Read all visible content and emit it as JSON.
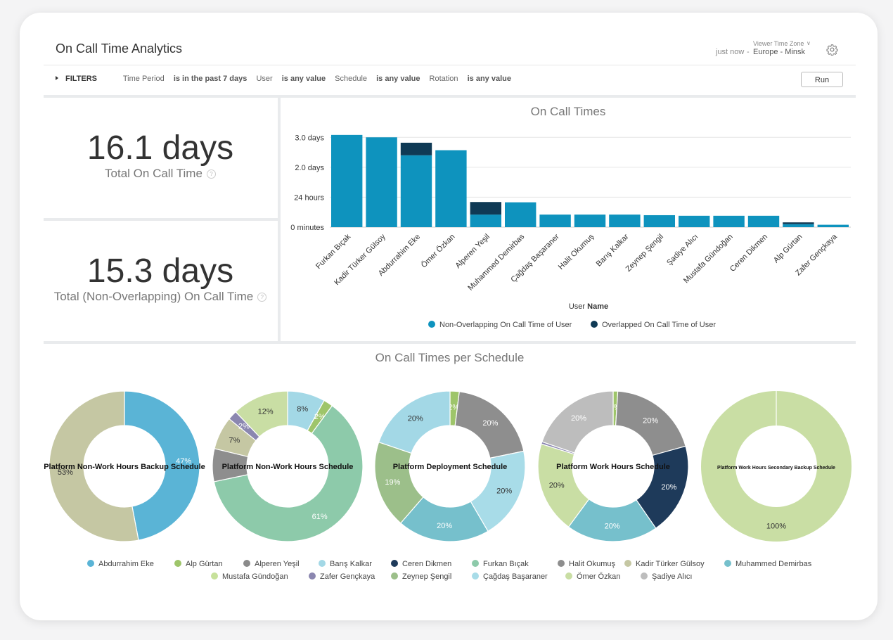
{
  "header": {
    "title": "On Call Time Analytics",
    "just_now": "just now",
    "tz_label": "Viewer Time Zone",
    "tz_value": "Europe - Minsk"
  },
  "filters": {
    "toggle_label": "FILTERS",
    "items": [
      {
        "name": "Time Period",
        "op": "is in the past 7 days"
      },
      {
        "name": "User",
        "op": "is any value"
      },
      {
        "name": "Schedule",
        "op": "is any value"
      },
      {
        "name": "Rotation",
        "op": "is any value"
      }
    ],
    "run_label": "Run"
  },
  "kpis": [
    {
      "value": "16.1 days",
      "label": "Total On Call Time"
    },
    {
      "value": "15.3 days",
      "label": "Total (Non-Overlapping) On Call Time"
    }
  ],
  "bar_chart": {
    "title": "On Call Times",
    "xlabel_prefix": "User",
    "xlabel_bold": "Name",
    "legend": [
      "Non-Overlapping On Call Time of User",
      "Overlapped On Call Time of User"
    ]
  },
  "pie_section": {
    "title": "On Call Times per Schedule"
  },
  "colors": {
    "non_overlap": "#0e93be",
    "overlap": "#0f3a55"
  },
  "chart_data": [
    {
      "type": "bar",
      "stacked": true,
      "title": "On Call Times",
      "xlabel": "User Name",
      "ylabel": "",
      "yticks": [
        "0 minutes",
        "24 hours",
        "2.0 days",
        "3.0 days"
      ],
      "ylim": [
        0,
        3.1
      ],
      "categories": [
        "Furkan Bıçak",
        "Kadir Türker Gülsoy",
        "Abdurrahim Eke",
        "Ömer Özkan",
        "Alperen Yeşil",
        "Muhammed Demirbas",
        "Çağdaş Başaraner",
        "Halit Okumuş",
        "Barış Kalkar",
        "Zeynep Şengil",
        "Şadiye Alıcı",
        "Mustafa Gündoğan",
        "Ceren Dikmen",
        "Alp Gürtan",
        "Zafer Gençkaya"
      ],
      "series": [
        {
          "name": "Non-Overlapping On Call Time of User",
          "values": [
            3.08,
            3.0,
            2.4,
            2.57,
            0.42,
            0.83,
            0.42,
            0.42,
            0.42,
            0.4,
            0.38,
            0.38,
            0.38,
            0.1,
            0.08
          ]
        },
        {
          "name": "Overlapped On Call Time of User",
          "values": [
            0,
            0,
            0.42,
            0,
            0.42,
            0,
            0,
            0,
            0,
            0,
            0,
            0,
            0,
            0.06,
            0
          ]
        }
      ]
    },
    {
      "type": "pie",
      "title": "On Call Times per Schedule",
      "charts": [
        {
          "name": "Platform Non-Work Hours Backup Schedule",
          "slices": [
            {
              "label": "Abdurrahim Eke",
              "value": 47,
              "text": "47%"
            },
            {
              "label": "Kadir Türker Gülsoy",
              "value": 53,
              "text": "53%"
            }
          ]
        },
        {
          "name": "Platform Non-Work Hours Schedule",
          "slices": [
            {
              "label": "Barış Kalkar",
              "value": 8,
              "text": "8%"
            },
            {
              "label": "Alp Gürtan",
              "value": 2,
              "text": "2%"
            },
            {
              "label": "Furkan Bıçak",
              "value": 61,
              "text": "61%"
            },
            {
              "label": "Halit Okumuş",
              "value": 7,
              "text": ""
            },
            {
              "label": "Kadir Türker Gülsoy",
              "value": 7,
              "text": "7%"
            },
            {
              "label": "Zafer Gençkaya",
              "value": 2,
              "text": "2%"
            },
            {
              "label": "Ömer Özkan",
              "value": 12,
              "text": "12%"
            }
          ]
        },
        {
          "name": "Platform Deployment Schedule",
          "slices": [
            {
              "label": "Alp Gürtan",
              "value": 2,
              "text": "2%"
            },
            {
              "label": "Halit Okumuş",
              "value": 20,
              "text": "20%"
            },
            {
              "label": "Çağdaş Başaraner",
              "value": 20,
              "text": "20%"
            },
            {
              "label": "Muhammed Demirbas",
              "value": 20,
              "text": "20%"
            },
            {
              "label": "Zeynep Şengil",
              "value": 19,
              "text": "19%"
            },
            {
              "label": "Barış Kalkar",
              "value": 20,
              "text": "20%"
            }
          ]
        },
        {
          "name": "Platform Work Hours Schedule",
          "slices": [
            {
              "label": "Alp Gürtan",
              "value": 1,
              "text": "1%"
            },
            {
              "label": "Halit Okumuş",
              "value": 20,
              "text": "20%"
            },
            {
              "label": "Ceren Dikmen",
              "value": 20,
              "text": "20%"
            },
            {
              "label": "Muhammed Demirbas",
              "value": 20,
              "text": "20%"
            },
            {
              "label": "Ömer Özkan",
              "value": 20,
              "text": "20%"
            },
            {
              "label": "Zafer Gençkaya",
              "value": 0.5,
              "text": ""
            },
            {
              "label": "Şadiye Alıcı",
              "value": 20,
              "text": "20%"
            }
          ]
        },
        {
          "name": "Platform Work Hours Secondary Backup Schedule",
          "slices": [
            {
              "label": "Ömer Özkan",
              "value": 100,
              "text": "100%"
            }
          ]
        }
      ]
    }
  ],
  "pie_legend": [
    {
      "label": "Abdurrahim Eke",
      "color": "#5ab4d6"
    },
    {
      "label": "Alp Gürtan",
      "color": "#9ec56a"
    },
    {
      "label": "Alperen Yeşil",
      "color": "#8a8a8a"
    },
    {
      "label": "Barış Kalkar",
      "color": "#a3d8e6"
    },
    {
      "label": "Ceren Dikmen",
      "color": "#1e3a5a"
    },
    {
      "label": "Furkan Bıçak",
      "color": "#8dcaaa"
    },
    {
      "label": "Halit Okumuş",
      "color": "#8e8e8e"
    },
    {
      "label": "Kadir Türker Gülsoy",
      "color": "#c5c7a3"
    },
    {
      "label": "Muhammed Demirbas",
      "color": "#76c0cc"
    },
    {
      "label": "Mustafa Gündoğan",
      "color": "#c7e19b"
    },
    {
      "label": "Zafer Gençkaya",
      "color": "#8b87b0"
    },
    {
      "label": "Zeynep Şengil",
      "color": "#9cbf8a"
    },
    {
      "label": "Çağdaş Başaraner",
      "color": "#a8dce8"
    },
    {
      "label": "Ömer Özkan",
      "color": "#c9dea4"
    },
    {
      "label": "Şadiye Alıcı",
      "color": "#bdbdbd"
    }
  ]
}
